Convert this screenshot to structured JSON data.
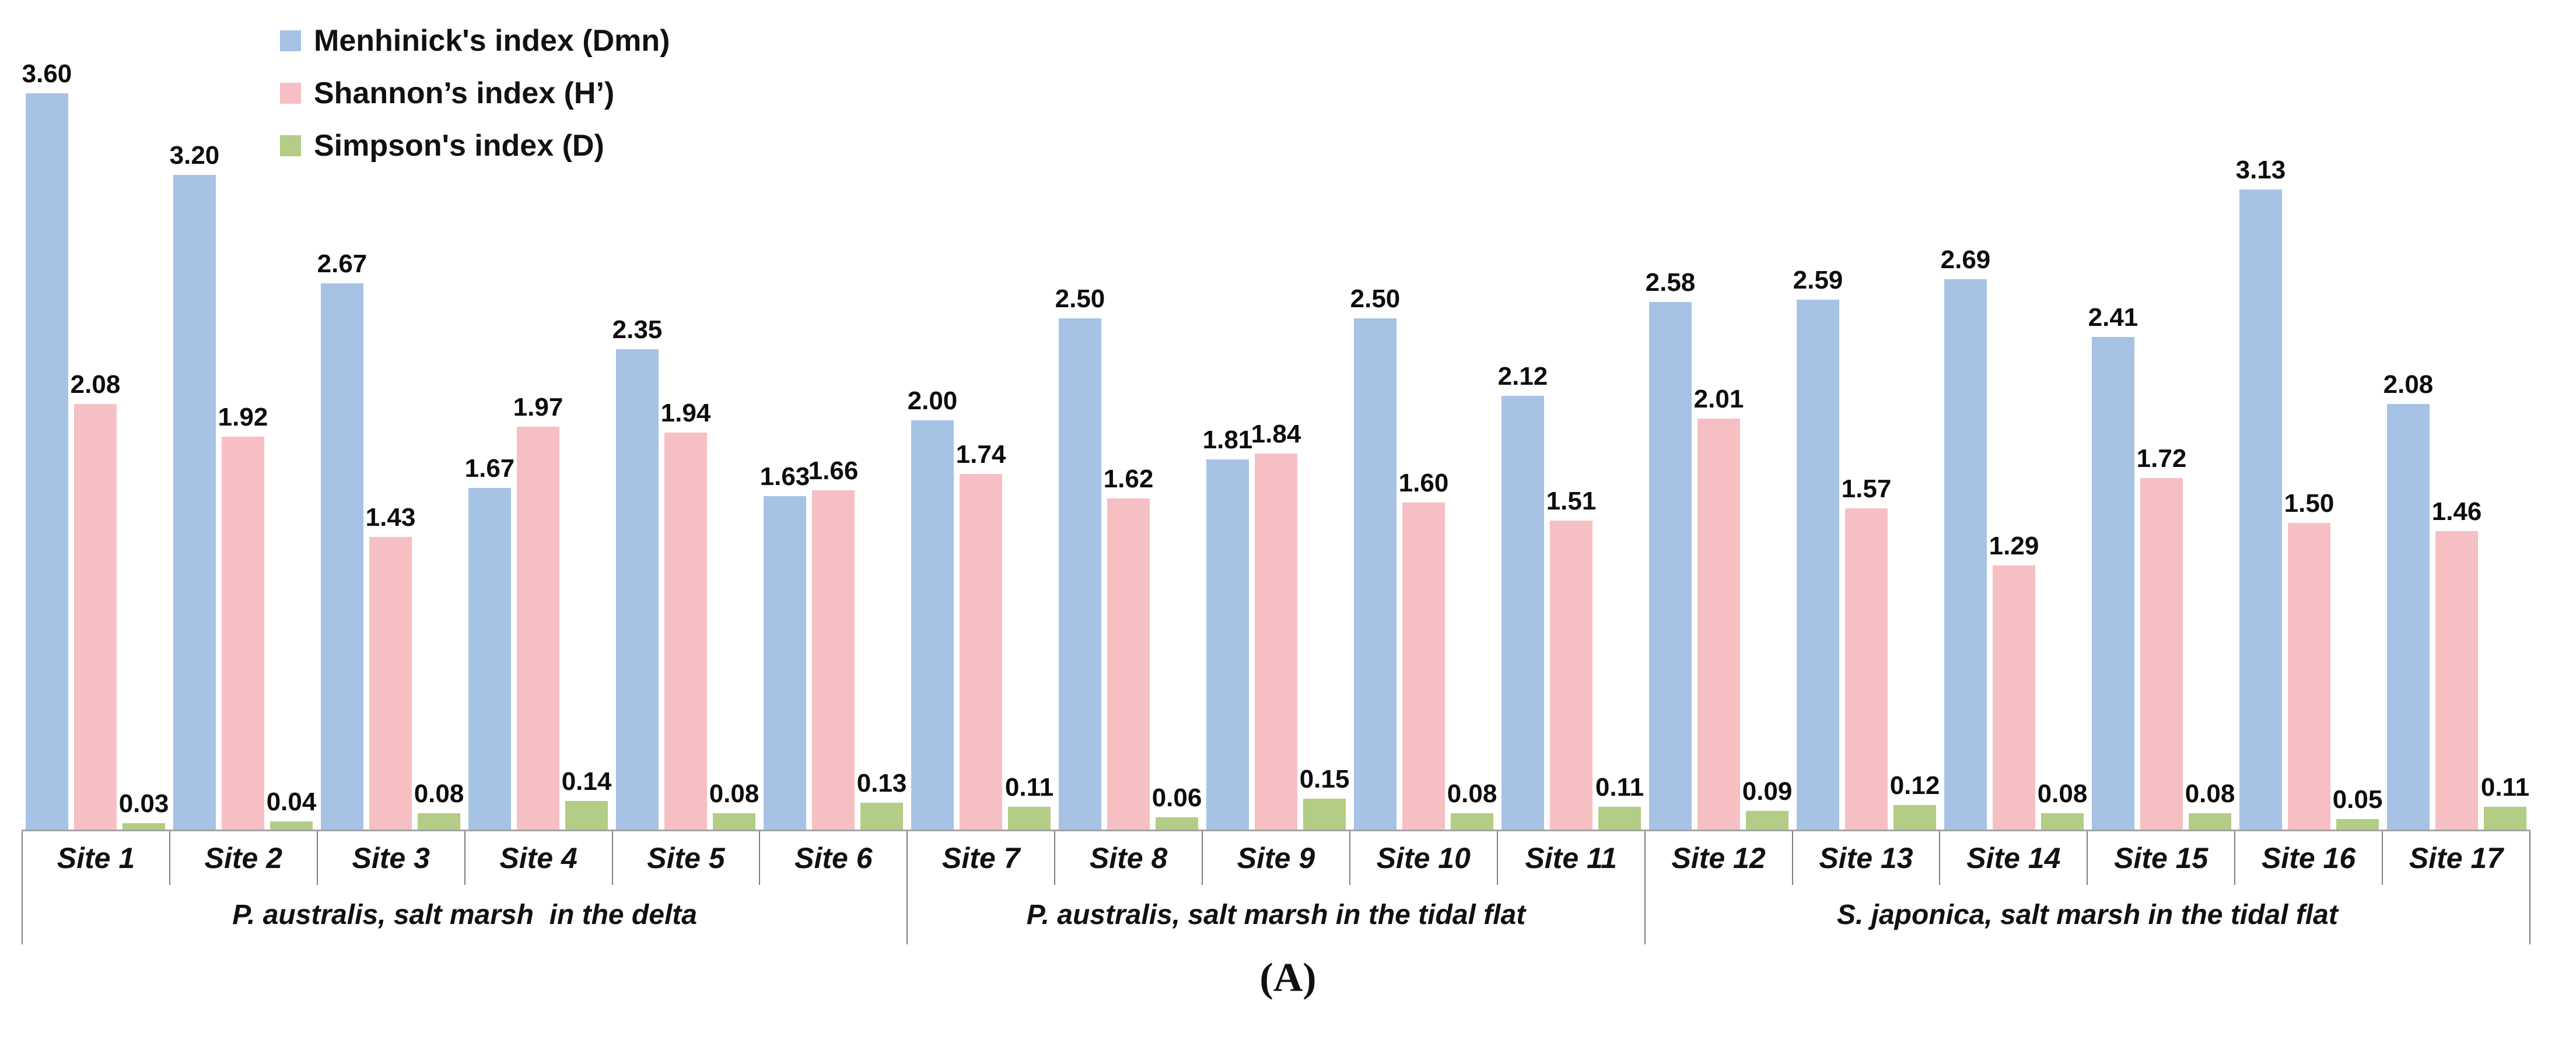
{
  "chart_data": {
    "type": "bar",
    "title": "",
    "xlabel": "",
    "ylabel": "",
    "ylim": [
      0,
      3.8
    ],
    "grid": false,
    "legend_position": "top-left",
    "value_label_decimals": 2,
    "categories": [
      "Site 1",
      "Site 2",
      "Site 3",
      "Site 4",
      "Site 5",
      "Site 6",
      "Site 7",
      "Site 8",
      "Site 9",
      "Site 10",
      "Site 11",
      "Site 12",
      "Site 13",
      "Site 14",
      "Site 15",
      "Site 16",
      "Site 17"
    ],
    "series": [
      {
        "name": "Menhinick's index (Dmn)",
        "color": "#a6c3e6",
        "values": [
          3.6,
          3.2,
          2.67,
          1.67,
          2.35,
          1.63,
          2.0,
          2.5,
          1.81,
          2.5,
          2.12,
          2.58,
          2.59,
          2.69,
          2.41,
          3.13,
          2.08
        ]
      },
      {
        "name": "Shannon’s index (H’)",
        "color": "#f6bfc3",
        "values": [
          2.08,
          1.92,
          1.43,
          1.97,
          1.94,
          1.66,
          1.74,
          1.62,
          1.84,
          1.6,
          1.51,
          2.01,
          1.57,
          1.29,
          1.72,
          1.5,
          1.46
        ]
      },
      {
        "name": "Simpson's index (D)",
        "color": "#b3cc86",
        "values": [
          0.03,
          0.04,
          0.08,
          0.14,
          0.08,
          0.13,
          0.11,
          0.06,
          0.15,
          0.08,
          0.11,
          0.09,
          0.12,
          0.08,
          0.08,
          0.05,
          0.11
        ]
      }
    ],
    "groups": [
      {
        "label": "P. australis, salt marsh  in the delta",
        "sites": 6
      },
      {
        "label": "P. australis, salt marsh in the tidal flat",
        "sites": 5
      },
      {
        "label": "S. japonica, salt marsh in the tidal flat",
        "sites": 6
      }
    ],
    "caption": "(A)",
    "colors": {
      "axis_line": "#a3a3a3",
      "separator_line": "#7f7f7f",
      "label_text": "#0d0d0d"
    }
  }
}
